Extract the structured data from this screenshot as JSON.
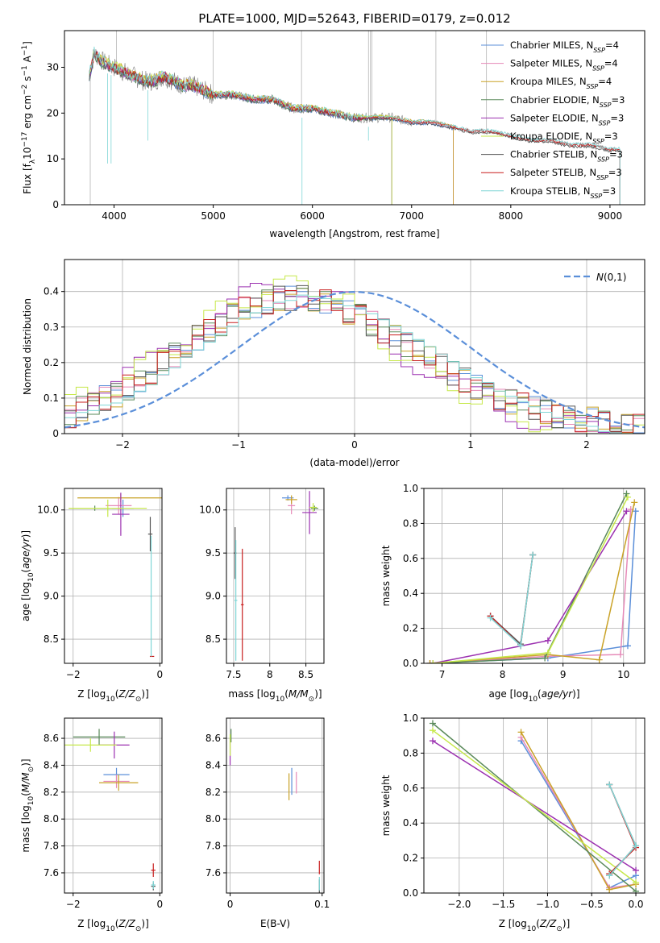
{
  "figure": {
    "title": "PLATE=1000, MJD=52643, FIBERID=0179, z=0.012"
  },
  "colors": [
    "#5b8fd9",
    "#e68ab8",
    "#c9a227",
    "#5a8a5a",
    "#9b30b0",
    "#c6e84a",
    "#555555",
    "#c81e1e",
    "#7fd6d6"
  ],
  "chart_data": [
    {
      "id": "spectrum",
      "type": "line",
      "xlabel": "wavelength [Angstrom, rest frame]",
      "ylabel": "Flux [f_λ10^−17 erg cm^−2 s^−1 A^−1]",
      "xlim": [
        3500,
        9350
      ],
      "ylim": [
        0,
        38
      ],
      "xticks": [
        4000,
        5000,
        6000,
        7000,
        8000,
        9000
      ],
      "yticks": [
        0,
        10,
        20,
        30
      ],
      "grid": false,
      "legend_position": "upper-right",
      "observed_x": [
        3750,
        3800,
        3900,
        4000,
        4100,
        4200,
        4300,
        4400,
        4500,
        4600,
        4700,
        4800,
        4900,
        5000,
        5200,
        5400,
        5600,
        5800,
        6000,
        6200,
        6400,
        6600,
        6800,
        7000,
        7200,
        7400,
        7600,
        7800,
        8000,
        8200,
        8400,
        8600,
        8800,
        9000,
        9100
      ],
      "observed_y": [
        28,
        33,
        31,
        30,
        29,
        28,
        27,
        27,
        28,
        27,
        26,
        26,
        25,
        24,
        24,
        23,
        23,
        21,
        21,
        20,
        19,
        19,
        19,
        18,
        18,
        17,
        16,
        16,
        15,
        14,
        14,
        13,
        13,
        12,
        12
      ],
      "series": [
        {
          "name": "Chabrier MILES, N_SSP=4",
          "label_main": "Chabrier MILES, N",
          "label_sub": "SSP",
          "label_tail": "=4",
          "x_end": 7420
        },
        {
          "name": "Salpeter MILES, N_SSP=4",
          "label_main": "Salpeter MILES, N",
          "label_sub": "SSP",
          "label_tail": "=4",
          "x_end": 7420
        },
        {
          "name": "Kroupa MILES, N_SSP=4",
          "label_main": "Kroupa MILES, N",
          "label_sub": "SSP",
          "label_tail": "=4",
          "x_end": 7420
        },
        {
          "name": "Chabrier ELODIE, N_SSP=3",
          "label_main": "Chabrier ELODIE, N",
          "label_sub": "SSP",
          "label_tail": "=3",
          "x_end": 6800
        },
        {
          "name": "Salpeter ELODIE, N_SSP=3",
          "label_main": "Salpeter ELODIE, N",
          "label_sub": "SSP",
          "label_tail": "=3",
          "x_end": 6800
        },
        {
          "name": "Kroupa ELODIE, N_SSP=3",
          "label_main": "Kroupa ELODIE, N",
          "label_sub": "SSP",
          "label_tail": "=3",
          "x_end": 6800
        },
        {
          "name": "Chabrier STELIB, N_SSP=3",
          "label_main": "Chabrier STELIB, N",
          "label_sub": "SSP",
          "label_tail": "=3",
          "x_end": 9100
        },
        {
          "name": "Salpeter STELIB, N_SSP=3",
          "label_main": "Salpeter STELIB, N",
          "label_sub": "SSP",
          "label_tail": "=3",
          "x_end": 9100
        },
        {
          "name": "Kroupa STELIB, N_SSP=3",
          "label_main": "Kroupa STELIB, N",
          "label_sub": "SSP",
          "label_tail": "=3",
          "x_end": 9100
        }
      ]
    },
    {
      "id": "residuals",
      "type": "line",
      "xlabel": "(data-model)/error",
      "ylabel": "Normed distribution",
      "xlim": [
        -2.5,
        2.5
      ],
      "ylim": [
        0,
        0.49
      ],
      "xticks": [
        -2,
        -1,
        0,
        1,
        2
      ],
      "yticks": [
        0.0,
        0.1,
        0.2,
        0.3,
        0.4
      ],
      "grid": true,
      "legend_position": "upper-right",
      "legend": "N(0,1)",
      "bin_edges": [
        -2.5,
        2.5
      ],
      "nbins": 50,
      "hist_base": [
        0.05,
        0.07,
        0.08,
        0.1,
        0.11,
        0.13,
        0.15,
        0.17,
        0.2,
        0.22,
        0.25,
        0.27,
        0.29,
        0.31,
        0.33,
        0.35,
        0.36,
        0.37,
        0.38,
        0.38,
        0.39,
        0.38,
        0.37,
        0.36,
        0.34,
        0.33,
        0.31,
        0.29,
        0.27,
        0.25,
        0.23,
        0.21,
        0.19,
        0.17,
        0.15,
        0.13,
        0.12,
        0.1,
        0.09,
        0.08,
        0.07,
        0.06,
        0.05,
        0.05,
        0.04,
        0.04,
        0.03,
        0.03,
        0.02,
        0.02
      ]
    },
    {
      "id": "age-vs-Z",
      "type": "scatter",
      "xlabel": "Z [log10(Z/Z⊙)]",
      "ylabel": "age [log10(age/yr)]",
      "xlim": [
        -2.2,
        0.05
      ],
      "ylim": [
        8.22,
        10.25
      ],
      "xticks": [
        -2,
        0
      ],
      "yticks": [
        8.5,
        9.0,
        9.5,
        10.0
      ],
      "grid": true,
      "points": [
        {
          "x": -0.85,
          "y": 10.02,
          "xerr": 0.25,
          "yerr": 0.1
        },
        {
          "x": -0.95,
          "y": 10.05,
          "xerr": 0.3,
          "yerr": 0.1
        },
        {
          "x": -0.9,
          "y": 10.14,
          "xerr": 1.0,
          "yerr": 0.05
        },
        {
          "x": -1.5,
          "y": 10.02,
          "xerr": 0.6,
          "yerr": 0.03
        },
        {
          "x": -0.9,
          "y": 9.95,
          "xerr": 0.2,
          "yerr": 0.25
        },
        {
          "x": -1.2,
          "y": 10.02,
          "xerr": 0.9,
          "yerr": 0.1
        },
        {
          "x": -0.22,
          "y": 9.72,
          "xerr": 0.05,
          "yerr": 0.2
        },
        {
          "x": -0.18,
          "y": 8.3,
          "xerr": 0.05,
          "yerr": 0.0
        },
        {
          "x": -0.2,
          "y": 9.0,
          "xerr": 0.02,
          "yerr": 0.7
        }
      ]
    },
    {
      "id": "age-vs-mass",
      "type": "scatter",
      "xlabel": "mass [log10(M/M⊙)]",
      "ylabel": "",
      "xlim": [
        7.4,
        8.75
      ],
      "ylim": [
        8.22,
        10.25
      ],
      "xticks": [
        7.5,
        8.0,
        8.5
      ],
      "yticks": [
        8.5,
        9.0,
        9.5,
        10.0
      ],
      "grid": true,
      "points": [
        {
          "x": 8.25,
          "y": 10.14,
          "xerr": 0.08,
          "yerr": 0.03
        },
        {
          "x": 8.3,
          "y": 10.05,
          "xerr": 0.05,
          "yerr": 0.1
        },
        {
          "x": 8.3,
          "y": 10.12,
          "xerr": 0.08,
          "yerr": 0.05
        },
        {
          "x": 8.62,
          "y": 10.02,
          "xerr": 0.05,
          "yerr": 0.03
        },
        {
          "x": 8.55,
          "y": 9.97,
          "xerr": 0.1,
          "yerr": 0.25
        },
        {
          "x": 8.6,
          "y": 10.03,
          "xerr": 0.05,
          "yerr": 0.05
        },
        {
          "x": 7.52,
          "y": 9.5,
          "xerr": 0.02,
          "yerr": 0.3
        },
        {
          "x": 7.62,
          "y": 8.9,
          "xerr": 0.02,
          "yerr": 0.65
        },
        {
          "x": 7.53,
          "y": 8.95,
          "xerr": 0.02,
          "yerr": 0.7
        }
      ]
    },
    {
      "id": "weight-vs-age",
      "type": "line",
      "xlabel": "age  [log10(age/yr)]",
      "ylabel": "mass weight",
      "xlim": [
        6.7,
        10.35
      ],
      "ylim": [
        0,
        1.0
      ],
      "xticks": [
        7,
        8,
        9,
        10
      ],
      "yticks": [
        0.0,
        0.2,
        0.4,
        0.6,
        0.8,
        1.0
      ],
      "grid": true,
      "series": [
        {
          "x": [
            6.8,
            8.75,
            10.07,
            10.2
          ],
          "y": [
            0.0,
            0.03,
            0.1,
            0.87
          ]
        },
        {
          "x": [
            6.8,
            8.75,
            9.95,
            10.12
          ],
          "y": [
            0.0,
            0.04,
            0.05,
            0.88
          ]
        },
        {
          "x": [
            6.8,
            8.75,
            9.6,
            10.18
          ],
          "y": [
            0.0,
            0.05,
            0.02,
            0.92
          ]
        },
        {
          "x": [
            6.85,
            8.7,
            10.05
          ],
          "y": [
            0.0,
            0.03,
            0.97
          ]
        },
        {
          "x": [
            6.85,
            8.75,
            10.05
          ],
          "y": [
            0.0,
            0.13,
            0.87
          ]
        },
        {
          "x": [
            6.85,
            8.75,
            10.07
          ],
          "y": [
            0.0,
            0.06,
            0.95
          ]
        },
        {
          "x": [
            7.8,
            8.3,
            8.5
          ],
          "y": [
            0.27,
            0.11,
            0.62
          ]
        },
        {
          "x": [
            7.8,
            8.3,
            8.5
          ],
          "y": [
            0.27,
            0.1,
            0.62
          ]
        },
        {
          "x": [
            7.8,
            8.3,
            8.5
          ],
          "y": [
            0.26,
            0.1,
            0.62
          ]
        }
      ]
    },
    {
      "id": "mass-vs-Z",
      "type": "scatter",
      "xlabel": "Z [log10(Z/Z⊙)]",
      "ylabel": "mass [log10(M/M⊙)]",
      "xlim": [
        -2.2,
        0.05
      ],
      "ylim": [
        7.45,
        8.75
      ],
      "xticks": [
        -2,
        0
      ],
      "yticks": [
        7.6,
        7.8,
        8.0,
        8.2,
        8.4,
        8.6,
        8.8
      ],
      "grid": true,
      "points": [
        {
          "x": -1.0,
          "y": 8.33,
          "xerr": 0.3,
          "yerr": 0.05
        },
        {
          "x": -1.0,
          "y": 8.28,
          "xerr": 0.3,
          "yerr": 0.05
        },
        {
          "x": -0.95,
          "y": 8.27,
          "xerr": 0.45,
          "yerr": 0.06
        },
        {
          "x": -1.4,
          "y": 8.61,
          "xerr": 0.6,
          "yerr": 0.06
        },
        {
          "x": -1.05,
          "y": 8.55,
          "xerr": 0.35,
          "yerr": 0.1
        },
        {
          "x": -1.6,
          "y": 8.55,
          "xerr": 0.6,
          "yerr": 0.05
        },
        {
          "x": -0.15,
          "y": 7.5,
          "xerr": 0.05,
          "yerr": 0.03
        },
        {
          "x": -0.15,
          "y": 7.62,
          "xerr": 0.05,
          "yerr": 0.05
        },
        {
          "x": -0.15,
          "y": 7.51,
          "xerr": 0.05,
          "yerr": 0.03
        }
      ]
    },
    {
      "id": "mass-vs-EBV",
      "type": "scatter",
      "xlabel": "E(B-V)",
      "ylabel": "",
      "xlim": [
        -0.004,
        0.102
      ],
      "ylim": [
        7.45,
        8.75
      ],
      "xticks": [
        0.0,
        0.1
      ],
      "yticks": [
        7.6,
        7.8,
        8.0,
        8.2,
        8.4,
        8.6
      ],
      "grid": true,
      "points": [
        {
          "x": 0.067,
          "y": 8.28,
          "xerr": 0,
          "yerr": 0.1
        },
        {
          "x": 0.072,
          "y": 8.27,
          "xerr": 0,
          "yerr": 0.08
        },
        {
          "x": 0.064,
          "y": 8.24,
          "xerr": 0,
          "yerr": 0.1
        },
        {
          "x": 0.001,
          "y": 8.62,
          "xerr": 0,
          "yerr": 0.05
        },
        {
          "x": 0.0,
          "y": 8.5,
          "xerr": 0,
          "yerr": 0.1
        },
        {
          "x": 0.0,
          "y": 8.55,
          "xerr": 0,
          "yerr": 0.08
        },
        {
          "x": 0.097,
          "y": 7.5,
          "xerr": 0,
          "yerr": 0.05
        },
        {
          "x": 0.097,
          "y": 7.64,
          "xerr": 0,
          "yerr": 0.05
        },
        {
          "x": 0.097,
          "y": 7.52,
          "xerr": 0,
          "yerr": 0.05
        }
      ]
    },
    {
      "id": "weight-vs-Z",
      "type": "line",
      "xlabel": "Z [log10(Z/Z⊙)]",
      "ylabel": "mass weight",
      "xlim": [
        -2.4,
        0.1
      ],
      "ylim": [
        0,
        1.0
      ],
      "xticks": [
        -2.0,
        -1.5,
        -1.0,
        -0.5,
        0.0
      ],
      "yticks": [
        0.0,
        0.2,
        0.4,
        0.6,
        0.8,
        1.0
      ],
      "grid": true,
      "series": [
        {
          "x": [
            -1.3,
            -0.3,
            0.0
          ],
          "y": [
            0.87,
            0.03,
            0.1
          ]
        },
        {
          "x": [
            -1.3,
            -0.3,
            0.0
          ],
          "y": [
            0.89,
            0.03,
            0.05
          ]
        },
        {
          "x": [
            -1.3,
            -0.3,
            0.0
          ],
          "y": [
            0.92,
            0.02,
            0.05
          ]
        },
        {
          "x": [
            -2.3,
            0.0
          ],
          "y": [
            0.97,
            0.01
          ]
        },
        {
          "x": [
            -2.3,
            0.0
          ],
          "y": [
            0.87,
            0.13
          ]
        },
        {
          "x": [
            -2.3,
            0.0
          ],
          "y": [
            0.93,
            0.06
          ]
        },
        {
          "x": [
            -0.3,
            0.0,
            -0.3
          ],
          "y": [
            0.62,
            0.27,
            0.1
          ]
        },
        {
          "x": [
            -0.3,
            0.0,
            -0.3
          ],
          "y": [
            0.62,
            0.26,
            0.11
          ]
        },
        {
          "x": [
            -0.3,
            0.0,
            -0.3
          ],
          "y": [
            0.62,
            0.27,
            0.1
          ]
        }
      ]
    }
  ]
}
